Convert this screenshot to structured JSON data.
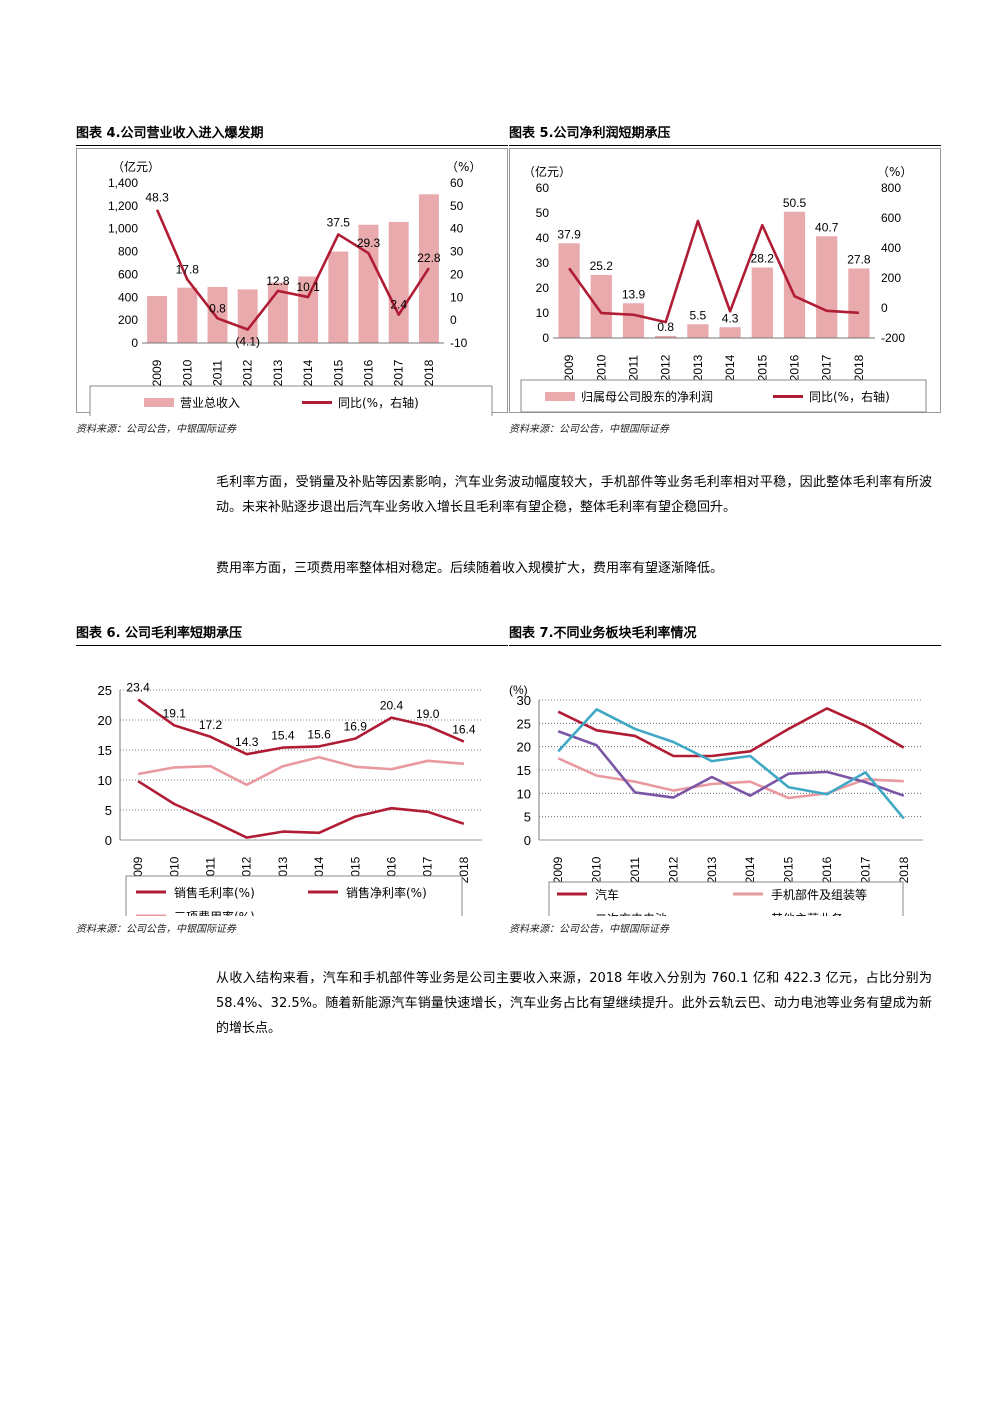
{
  "colors": {
    "bar": "#e8aaad",
    "line": "#b01c34",
    "light": "#e89aa0",
    "purple": "#7b55a6",
    "cyan": "#3fa8c4"
  },
  "source_text": "资料来源：公司公告，中银国际证券",
  "fig4": {
    "title": "图表 4.公司营业收入进入爆发期",
    "left_unit": "（亿元）",
    "right_unit": "（%）",
    "legend": [
      "营业总收入",
      "同比(%，右轴)"
    ],
    "chart_data": {
      "type": "bar",
      "categories": [
        "2009",
        "2010",
        "2011",
        "2012",
        "2013",
        "2014",
        "2015",
        "2016",
        "2017",
        "2018"
      ],
      "series": [
        {
          "name": "营业总收入",
          "axis": "left",
          "type": "bar",
          "values": [
            411,
            484,
            490,
            469,
            529,
            582,
            800,
            1035,
            1059,
            1301
          ]
        },
        {
          "name": "同比(%，右轴)",
          "axis": "right",
          "type": "line",
          "values": [
            48.3,
            17.8,
            0.8,
            -4.1,
            12.8,
            10.1,
            37.5,
            29.3,
            2.4,
            22.8
          ],
          "labels": [
            "48.3",
            "17.8",
            "0.8",
            "(4.1)",
            "12.8",
            "10.1",
            "37.5",
            "29.3",
            "2.4",
            "22.8"
          ]
        }
      ],
      "ylim_left": [
        0,
        1400
      ],
      "yticks_left": [
        "0",
        "200",
        "400",
        "600",
        "800",
        "1,000",
        "1,200",
        "1,400"
      ],
      "ylim_right": [
        -10,
        60
      ],
      "yticks_right": [
        "-10",
        "0",
        "10",
        "20",
        "30",
        "40",
        "50",
        "60"
      ],
      "grid": false
    }
  },
  "fig5": {
    "title": "图表 5.公司净利润短期承压",
    "left_unit": "（亿元）",
    "right_unit": "（%）",
    "legend": [
      "归属母公司股东的净利润",
      "同比(%，右轴)"
    ],
    "chart_data": {
      "type": "bar",
      "categories": [
        "2009",
        "2010",
        "2011",
        "2012",
        "2013",
        "2014",
        "2015",
        "2016",
        "2017",
        "2018"
      ],
      "series": [
        {
          "name": "归属母公司股东的净利润",
          "axis": "left",
          "type": "bar",
          "values": [
            37.9,
            25.2,
            13.9,
            0.8,
            5.5,
            4.3,
            28.2,
            50.5,
            40.7,
            27.8
          ],
          "labels": [
            "37.9",
            "25.2",
            "13.9",
            "0.8",
            "5.5",
            "4.3",
            "28.2",
            "50.5",
            "40.7",
            "27.8"
          ]
        },
        {
          "name": "同比(%，右轴)",
          "axis": "right",
          "type": "line",
          "values": [
            265,
            -34,
            -45,
            -94,
            580,
            -22,
            552,
            79,
            -19,
            -32
          ]
        }
      ],
      "ylim_left": [
        0,
        60
      ],
      "yticks_left": [
        "0",
        "10",
        "20",
        "30",
        "40",
        "50",
        "60"
      ],
      "ylim_right": [
        -200,
        800
      ],
      "yticks_right": [
        "-200",
        "0",
        "200",
        "400",
        "600",
        "800"
      ],
      "grid": false
    }
  },
  "fig6": {
    "title": "图表 6. 公司毛利率短期承压",
    "legend": [
      "销售毛利率(%)",
      "销售净利率(%)",
      "三项费用率(%)"
    ],
    "chart_data": {
      "type": "line",
      "categories": [
        "2009",
        "2010",
        "2011",
        "2012",
        "2013",
        "2014",
        "2015",
        "2016",
        "2017",
        "2018"
      ],
      "series": [
        {
          "name": "销售毛利率(%)",
          "values": [
            23.4,
            19.1,
            17.2,
            14.3,
            15.4,
            15.6,
            16.9,
            20.4,
            19.0,
            16.4
          ],
          "labels": [
            "23.4",
            "19.1",
            "17.2",
            "14.3",
            "15.4",
            "15.6",
            "16.9",
            "20.4",
            "19.0",
            "16.4"
          ]
        },
        {
          "name": "销售净利率(%)",
          "values": [
            9.8,
            6.0,
            3.3,
            0.4,
            1.4,
            1.2,
            3.9,
            5.3,
            4.7,
            2.7
          ]
        },
        {
          "name": "三项费用率(%)",
          "values": [
            11.0,
            12.1,
            12.3,
            9.2,
            12.3,
            13.8,
            12.2,
            11.8,
            13.2,
            12.7
          ]
        }
      ],
      "ylim": [
        0,
        25
      ],
      "yticks": [
        "0",
        "5",
        "10",
        "15",
        "20",
        "25"
      ],
      "grid": true
    }
  },
  "fig7": {
    "title": "图表 7.不同业务板块毛利率情况",
    "unit": "(%)",
    "legend": [
      "汽车",
      "手机部件及组装等",
      "二次充电电池",
      "其他主营业务"
    ],
    "chart_data": {
      "type": "line",
      "categories": [
        "2009",
        "2010",
        "2011",
        "2012",
        "2013",
        "2014",
        "2015",
        "2016",
        "2017",
        "2018"
      ],
      "series": [
        {
          "name": "汽车",
          "values": [
            27.5,
            23.5,
            22.3,
            18.0,
            18.0,
            19.0,
            23.8,
            28.2,
            24.5,
            19.8
          ]
        },
        {
          "name": "手机部件及组装等",
          "values": [
            17.5,
            13.8,
            12.5,
            10.6,
            12.0,
            12.5,
            9.0,
            10.0,
            13.0,
            12.6
          ]
        },
        {
          "name": "二次充电电池",
          "values": [
            23.3,
            20.3,
            10.2,
            9.1,
            13.5,
            9.5,
            14.2,
            14.6,
            12.4,
            9.5
          ]
        },
        {
          "name": "其他主营业务",
          "values": [
            19.0,
            28.0,
            23.8,
            21.0,
            16.9,
            18.0,
            11.3,
            9.8,
            14.5,
            4.6
          ]
        }
      ],
      "ylim": [
        0,
        30
      ],
      "yticks": [
        "0",
        "5",
        "10",
        "15",
        "20",
        "25",
        "30"
      ],
      "grid": true
    }
  },
  "para1": "毛利率方面，受销量及补贴等因素影响，汽车业务波动幅度较大，手机部件等业务毛利率相对平稳，因此整体毛利率有所波动。未来补贴逐步退出后汽车业务收入增长且毛利率有望企稳，整体毛利率有望企稳回升。",
  "para2": "费用率方面，三项费用率整体相对稳定。后续随着收入规模扩大，费用率有望逐渐降低。",
  "para3": "从收入结构来看，汽车和手机部件等业务是公司主要收入来源，2018 年收入分别为 760.1 亿和 422.3 亿元，占比分别为 58.4%、32.5%。随着新能源汽车销量快速增长，汽车业务占比有望继续提升。此外云轨云巴、动力电池等业务有望成为新的增长点。"
}
